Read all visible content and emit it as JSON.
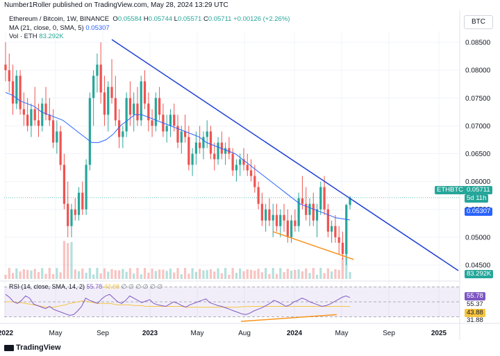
{
  "header": {
    "published": "Number1Roller published on TradingView.com, May 28, 2024 13:29 UTC",
    "symbol": "Ethereum / Bitcoin, 1W, BINANCE",
    "o_label": "O",
    "o_value": "0.05584",
    "h_label": "H",
    "h_value": "0.05744",
    "l_label": "L",
    "l_value": "0.05571",
    "c_label": "C",
    "c_value": "0.05711",
    "change": "+0.00126 (+2.26%)",
    "ma_label": "MA (21, close, 0, SMA, 5)",
    "ma_value": "0.05307",
    "vol_label": "Vol · ETH",
    "vol_value": "83.292K",
    "currency": "BTC"
  },
  "rsi_legend": {
    "label": "RSI (14, close, SMA, 14, 2)",
    "value": "55.78",
    "ma_value": "43.88",
    "rest": "∅ ∅ ∅ ∅ ∅ ∅"
  },
  "price_tags": {
    "symbol": "ETHBTC",
    "last": "0.05711",
    "countdown": "5d 11h",
    "ma": "0.05307",
    "vol": "83.292K"
  },
  "rsi_tags": [
    "55.78",
    "55.37",
    "43.88",
    "31.88"
  ],
  "footer": {
    "brand": "TradingView"
  },
  "colors": {
    "up": "#26a69a",
    "down": "#ef5350",
    "ma": "#2962ff",
    "trend": "#1e3fd6",
    "support": "#f7931a",
    "rsi": "#7e57c2",
    "rsi_ma": "#f5c542"
  },
  "chart_data": {
    "type": "candlestick",
    "interval": "1W",
    "y_ticks": [
      "0.08500",
      "0.08000",
      "0.07500",
      "0.07000",
      "0.06500",
      "0.06000",
      "0.05500",
      "0.05000",
      "0.04500"
    ],
    "ylim": [
      0.0425,
      0.087
    ],
    "x_ticks": [
      "2022",
      "May",
      "Sep",
      "2023",
      "May",
      "Aug",
      "2024",
      "May",
      "Sep",
      "2025"
    ],
    "x_tick_weeks": [
      0,
      18,
      35,
      52,
      69,
      86,
      104,
      121,
      138,
      156
    ],
    "weeks_total": 164,
    "candles": [
      [
        0.081,
        0.085,
        0.078,
        0.08
      ],
      [
        0.08,
        0.083,
        0.076,
        0.078
      ],
      [
        0.078,
        0.081,
        0.072,
        0.074
      ],
      [
        0.074,
        0.08,
        0.073,
        0.079
      ],
      [
        0.079,
        0.08,
        0.072,
        0.073
      ],
      [
        0.073,
        0.076,
        0.07,
        0.072
      ],
      [
        0.072,
        0.075,
        0.069,
        0.07
      ],
      [
        0.07,
        0.074,
        0.068,
        0.073
      ],
      [
        0.073,
        0.077,
        0.07,
        0.071
      ],
      [
        0.071,
        0.074,
        0.068,
        0.07
      ],
      [
        0.07,
        0.075,
        0.069,
        0.074
      ],
      [
        0.074,
        0.077,
        0.071,
        0.072
      ],
      [
        0.072,
        0.075,
        0.07,
        0.071
      ],
      [
        0.071,
        0.073,
        0.066,
        0.067
      ],
      [
        0.067,
        0.071,
        0.065,
        0.069
      ],
      [
        0.069,
        0.07,
        0.062,
        0.063
      ],
      [
        0.063,
        0.065,
        0.055,
        0.056
      ],
      [
        0.056,
        0.06,
        0.05,
        0.052
      ],
      [
        0.052,
        0.056,
        0.05,
        0.055
      ],
      [
        0.055,
        0.057,
        0.053,
        0.054
      ],
      [
        0.054,
        0.059,
        0.053,
        0.058
      ],
      [
        0.058,
        0.06,
        0.054,
        0.055
      ],
      [
        0.055,
        0.064,
        0.054,
        0.063
      ],
      [
        0.063,
        0.076,
        0.062,
        0.075
      ],
      [
        0.075,
        0.08,
        0.07,
        0.079
      ],
      [
        0.079,
        0.083,
        0.076,
        0.081
      ],
      [
        0.081,
        0.085,
        0.074,
        0.076
      ],
      [
        0.076,
        0.079,
        0.07,
        0.072
      ],
      [
        0.072,
        0.078,
        0.069,
        0.077
      ],
      [
        0.077,
        0.082,
        0.074,
        0.075
      ],
      [
        0.075,
        0.079,
        0.07,
        0.071
      ],
      [
        0.071,
        0.073,
        0.066,
        0.068
      ],
      [
        0.068,
        0.07,
        0.066,
        0.069
      ],
      [
        0.069,
        0.076,
        0.068,
        0.075
      ],
      [
        0.075,
        0.078,
        0.07,
        0.072
      ],
      [
        0.072,
        0.076,
        0.069,
        0.074
      ],
      [
        0.074,
        0.077,
        0.07,
        0.071
      ],
      [
        0.071,
        0.079,
        0.07,
        0.078
      ],
      [
        0.078,
        0.08,
        0.073,
        0.074
      ],
      [
        0.074,
        0.076,
        0.069,
        0.071
      ],
      [
        0.071,
        0.073,
        0.068,
        0.07
      ],
      [
        0.07,
        0.076,
        0.069,
        0.075
      ],
      [
        0.075,
        0.077,
        0.071,
        0.072
      ],
      [
        0.072,
        0.074,
        0.068,
        0.069
      ],
      [
        0.069,
        0.072,
        0.067,
        0.07
      ],
      [
        0.07,
        0.073,
        0.068,
        0.072
      ],
      [
        0.072,
        0.074,
        0.069,
        0.07
      ],
      [
        0.07,
        0.072,
        0.066,
        0.067
      ],
      [
        0.067,
        0.07,
        0.065,
        0.069
      ],
      [
        0.069,
        0.072,
        0.067,
        0.068
      ],
      [
        0.068,
        0.07,
        0.062,
        0.063
      ],
      [
        0.063,
        0.066,
        0.061,
        0.065
      ],
      [
        0.065,
        0.069,
        0.063,
        0.067
      ],
      [
        0.067,
        0.07,
        0.065,
        0.066
      ],
      [
        0.066,
        0.069,
        0.064,
        0.068
      ],
      [
        0.068,
        0.071,
        0.066,
        0.069
      ],
      [
        0.069,
        0.07,
        0.064,
        0.065
      ],
      [
        0.065,
        0.067,
        0.062,
        0.064
      ],
      [
        0.064,
        0.068,
        0.063,
        0.067
      ],
      [
        0.067,
        0.069,
        0.064,
        0.065
      ],
      [
        0.065,
        0.067,
        0.063,
        0.066
      ],
      [
        0.066,
        0.068,
        0.064,
        0.065
      ],
      [
        0.065,
        0.066,
        0.061,
        0.062
      ],
      [
        0.062,
        0.064,
        0.06,
        0.063
      ],
      [
        0.063,
        0.065,
        0.061,
        0.064
      ],
      [
        0.064,
        0.066,
        0.062,
        0.063
      ],
      [
        0.063,
        0.065,
        0.061,
        0.062
      ],
      [
        0.062,
        0.064,
        0.06,
        0.061
      ],
      [
        0.061,
        0.063,
        0.058,
        0.059
      ],
      [
        0.059,
        0.06,
        0.055,
        0.056
      ],
      [
        0.056,
        0.058,
        0.052,
        0.053
      ],
      [
        0.053,
        0.056,
        0.051,
        0.055
      ],
      [
        0.055,
        0.057,
        0.052,
        0.053
      ],
      [
        0.053,
        0.056,
        0.05,
        0.054
      ],
      [
        0.054,
        0.056,
        0.051,
        0.052
      ],
      [
        0.052,
        0.055,
        0.05,
        0.054
      ],
      [
        0.054,
        0.056,
        0.051,
        0.053
      ],
      [
        0.053,
        0.055,
        0.049,
        0.05
      ],
      [
        0.05,
        0.054,
        0.049,
        0.053
      ],
      [
        0.053,
        0.055,
        0.051,
        0.052
      ],
      [
        0.052,
        0.058,
        0.051,
        0.057
      ],
      [
        0.057,
        0.061,
        0.055,
        0.056
      ],
      [
        0.056,
        0.059,
        0.053,
        0.054
      ],
      [
        0.054,
        0.057,
        0.052,
        0.056
      ],
      [
        0.056,
        0.058,
        0.052,
        0.053
      ],
      [
        0.053,
        0.056,
        0.05,
        0.055
      ],
      [
        0.055,
        0.06,
        0.054,
        0.059
      ],
      [
        0.059,
        0.061,
        0.054,
        0.055
      ],
      [
        0.055,
        0.056,
        0.05,
        0.051
      ],
      [
        0.051,
        0.053,
        0.049,
        0.052
      ],
      [
        0.052,
        0.054,
        0.049,
        0.05
      ],
      [
        0.05,
        0.052,
        0.047,
        0.049
      ],
      [
        0.049,
        0.051,
        0.046,
        0.047
      ],
      [
        0.047,
        0.056,
        0.045,
        0.0558
      ],
      [
        0.0558,
        0.0574,
        0.055,
        0.0571
      ]
    ],
    "ma21": [
      0.076,
      0.0755,
      0.0745,
      0.074,
      0.0735,
      0.0725,
      0.072,
      0.0715,
      0.071,
      0.07,
      0.069,
      0.068,
      0.067,
      0.067,
      0.0675,
      0.0685,
      0.07,
      0.071,
      0.072,
      0.072,
      0.0715,
      0.071,
      0.0705,
      0.07,
      0.0695,
      0.069,
      0.0685,
      0.068,
      0.067,
      0.0665,
      0.066,
      0.0655,
      0.065,
      0.064,
      0.063,
      0.062,
      0.061,
      0.06,
      0.059,
      0.058,
      0.057,
      0.056,
      0.0555,
      0.055,
      0.0545,
      0.054,
      0.0535,
      0.0533,
      0.0531
    ],
    "trendline": [
      [
        29,
        0.0855
      ],
      [
        163,
        0.044
      ]
    ],
    "support_line": [
      [
        73,
        0.051
      ],
      [
        95,
        0.046
      ]
    ],
    "rsi": {
      "levels": [
        "55.78",
        "55.37",
        "43.88",
        "31.88"
      ],
      "ylim": [
        25,
        75
      ],
      "values": [
        60,
        56,
        50,
        48,
        52,
        58,
        55,
        47,
        45,
        43,
        41,
        44,
        40,
        38,
        36,
        34,
        32,
        33,
        38,
        44,
        55,
        52,
        50,
        48,
        54,
        58,
        60,
        55,
        50,
        48,
        52,
        58,
        55,
        52,
        49,
        51,
        53,
        48,
        46,
        45,
        44,
        47,
        50,
        48,
        45,
        43,
        46,
        48,
        50,
        52,
        54,
        49,
        47,
        45,
        44,
        42,
        40,
        38,
        36,
        34,
        33,
        35,
        38,
        40,
        42,
        45,
        48,
        52,
        50,
        47,
        44,
        46,
        50,
        52,
        55,
        53,
        50,
        48,
        46,
        44,
        45,
        47,
        50,
        53,
        56,
        58,
        55.78
      ],
      "ma": [
        50,
        50,
        50,
        49,
        49,
        48,
        47,
        46,
        45,
        44,
        43,
        43,
        43,
        44,
        45,
        46,
        48,
        49,
        50,
        51,
        51,
        50,
        49,
        48,
        48,
        48,
        48,
        47,
        46,
        46,
        46,
        46,
        45,
        45,
        45,
        44,
        44,
        44,
        44,
        44,
        44,
        44,
        44,
        44,
        44,
        43,
        43,
        43,
        43,
        43,
        43,
        43,
        43,
        43,
        43,
        43,
        43,
        43,
        43,
        43.5,
        43.7,
        43.9,
        44,
        44,
        44,
        44,
        44,
        44,
        44,
        44,
        44,
        44,
        44,
        44,
        44,
        44,
        44,
        44,
        44,
        44,
        44,
        44,
        44,
        44,
        44,
        43.9,
        43.88
      ],
      "divergence_line": [
        [
          0.52,
          24
        ],
        [
          0.73,
          33
        ]
      ]
    }
  }
}
